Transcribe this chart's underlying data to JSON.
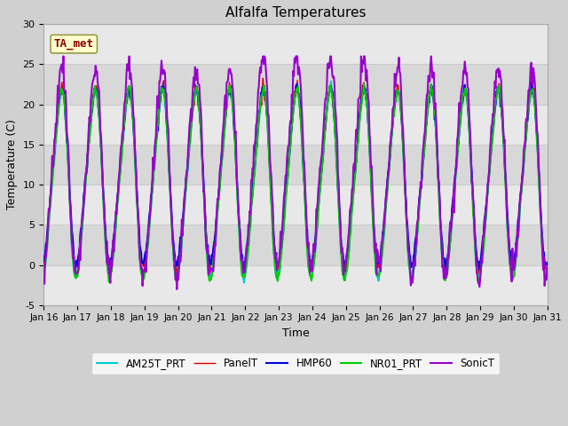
{
  "title": "Alfalfa Temperatures",
  "xlabel": "Time",
  "ylabel": "Temperature (C)",
  "ylim": [
    -5,
    30
  ],
  "x_tick_labels": [
    "Jan 16",
    "Jan 17",
    "Jan 18",
    "Jan 19",
    "Jan 20",
    "Jan 21",
    "Jan 22",
    "Jan 23",
    "Jan 24",
    "Jan 25",
    "Jan 26",
    "Jan 27",
    "Jan 28",
    "Jan 29",
    "Jan 30",
    "Jan 31"
  ],
  "series": {
    "PanelT": {
      "color": "#dd0000",
      "lw": 1.0,
      "zorder": 3
    },
    "HMP60": {
      "color": "#0000dd",
      "lw": 1.5,
      "zorder": 4
    },
    "NR01_PRT": {
      "color": "#00cc00",
      "lw": 1.5,
      "zorder": 5
    },
    "SonicT": {
      "color": "#9900cc",
      "lw": 1.5,
      "zorder": 6
    },
    "AM25T_PRT": {
      "color": "#00cccc",
      "lw": 1.5,
      "zorder": 2
    }
  },
  "annotation": {
    "text": "TA_met",
    "fontsize": 9,
    "color": "#8b0000",
    "bgcolor": "#ffffcc",
    "edgecolor": "#999944"
  },
  "grid_color": "#cccccc",
  "fig_bg": "#d0d0d0",
  "plot_bg": "#f0f0f0",
  "band_light": "#e8e8e8",
  "band_dark": "#d8d8d8"
}
